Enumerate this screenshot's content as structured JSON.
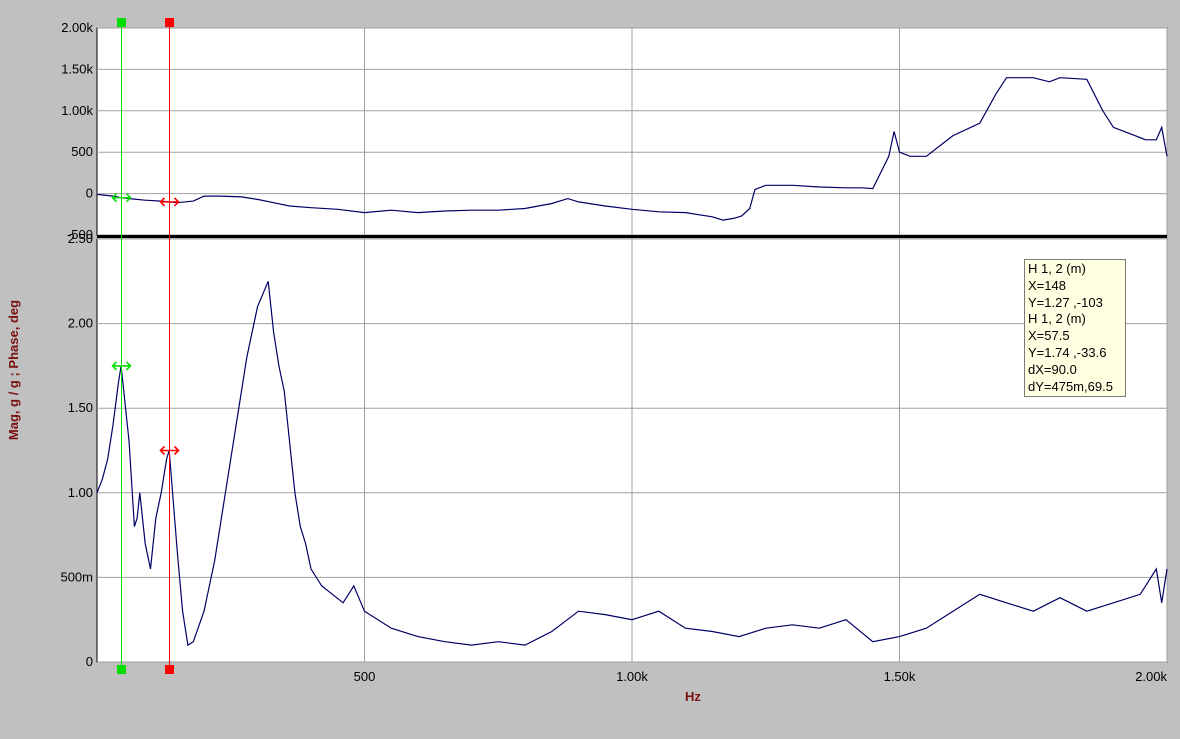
{
  "x_axis_label": "Hz",
  "y_axis_label": "Mag, g / g ; Phase, deg",
  "x_ticks": [
    {
      "value": 500,
      "label": "500"
    },
    {
      "value": 1000,
      "label": "1.00k"
    },
    {
      "value": 1500,
      "label": "1.50k"
    },
    {
      "value": 2000,
      "label": "2.00k"
    }
  ],
  "cursors": [
    {
      "name": "cursor-1",
      "x": 45,
      "color": "#00dd00"
    },
    {
      "name": "cursor-2",
      "x": 135,
      "color": "#ff0000"
    }
  ],
  "readout": {
    "lines": [
      "H 1, 2 (m)",
      "X=148",
      "Y=1.27 ,-103",
      "H 1, 2 (m)",
      "X=57.5",
      "Y=1.74 ,-33.6",
      "dX=90.0",
      "dY=475m,69.5"
    ]
  },
  "colors": {
    "trace": "#000066",
    "grid": "#a0a0a0",
    "background": "#c0c0c0",
    "plot": "#ffffff",
    "axis_label": "#7a1010"
  },
  "chart_data": [
    {
      "type": "line",
      "panel": "phase",
      "xlim": [
        0,
        2000
      ],
      "ylim": [
        -500,
        2000
      ],
      "y_ticks": [
        {
          "value": 2000,
          "label": "2.00k"
        },
        {
          "value": 1500,
          "label": "1.50k"
        },
        {
          "value": 1000,
          "label": "1.00k"
        },
        {
          "value": 500,
          "label": "500"
        },
        {
          "value": 0,
          "label": "0"
        },
        {
          "value": -500,
          "label": "-500"
        }
      ],
      "series": [
        {
          "x": [
            0,
            30,
            45,
            60,
            90,
            120,
            135,
            150,
            180,
            200,
            230,
            270,
            300,
            330,
            360,
            400,
            450,
            500,
            550,
            600,
            650,
            700,
            750,
            800,
            850,
            880,
            900,
            950,
            1000,
            1050,
            1100,
            1150,
            1170,
            1190,
            1205,
            1220,
            1230,
            1250,
            1300,
            1350,
            1400,
            1430,
            1450,
            1480,
            1490,
            1500,
            1520,
            1550,
            1580,
            1600,
            1650,
            1680,
            1700,
            1750,
            1780,
            1800,
            1850,
            1880,
            1900,
            1940,
            1960,
            1980,
            1990,
            2000
          ],
          "y": [
            -10,
            -30,
            -50,
            -60,
            -80,
            -90,
            -100,
            -110,
            -90,
            -30,
            -30,
            -40,
            -70,
            -110,
            -150,
            -170,
            -190,
            -230,
            -200,
            -230,
            -210,
            -200,
            -200,
            -180,
            -120,
            -60,
            -100,
            -150,
            -190,
            -220,
            -230,
            -280,
            -320,
            -300,
            -270,
            -180,
            50,
            100,
            100,
            80,
            70,
            70,
            60,
            450,
            750,
            500,
            450,
            450,
            600,
            700,
            850,
            1200,
            1400,
            1400,
            1350,
            1400,
            1380,
            1000,
            800,
            700,
            650,
            650,
            800,
            450
          ]
        }
      ]
    },
    {
      "type": "line",
      "panel": "magnitude",
      "xlim": [
        0,
        2000
      ],
      "ylim": [
        0,
        2.5
      ],
      "y_ticks": [
        {
          "value": 2.5,
          "label": "2.50"
        },
        {
          "value": 2.0,
          "label": "2.00"
        },
        {
          "value": 1.5,
          "label": "1.50"
        },
        {
          "value": 1.0,
          "label": "1.00"
        },
        {
          "value": 0.5,
          "label": "500m"
        },
        {
          "value": 0,
          "label": "0"
        }
      ],
      "series": [
        {
          "x": [
            0,
            10,
            20,
            30,
            40,
            45,
            50,
            60,
            70,
            75,
            80,
            90,
            100,
            110,
            120,
            130,
            135,
            140,
            150,
            160,
            170,
            180,
            200,
            220,
            240,
            260,
            280,
            300,
            320,
            330,
            340,
            350,
            360,
            370,
            380,
            390,
            400,
            420,
            440,
            460,
            480,
            500,
            550,
            600,
            650,
            700,
            750,
            800,
            850,
            900,
            950,
            1000,
            1050,
            1100,
            1150,
            1200,
            1250,
            1300,
            1350,
            1400,
            1450,
            1500,
            1550,
            1600,
            1650,
            1700,
            1750,
            1800,
            1850,
            1900,
            1950,
            1980,
            1990,
            2000
          ],
          "y": [
            1.0,
            1.08,
            1.2,
            1.4,
            1.65,
            1.75,
            1.6,
            1.3,
            0.8,
            0.85,
            1.0,
            0.7,
            0.55,
            0.85,
            1.0,
            1.2,
            1.25,
            1.05,
            0.65,
            0.3,
            0.1,
            0.12,
            0.3,
            0.6,
            1.0,
            1.4,
            1.8,
            2.1,
            2.25,
            1.95,
            1.75,
            1.6,
            1.3,
            1.0,
            0.8,
            0.7,
            0.55,
            0.45,
            0.4,
            0.35,
            0.45,
            0.3,
            0.2,
            0.15,
            0.12,
            0.1,
            0.12,
            0.1,
            0.18,
            0.3,
            0.28,
            0.25,
            0.3,
            0.2,
            0.18,
            0.15,
            0.2,
            0.22,
            0.2,
            0.25,
            0.12,
            0.15,
            0.2,
            0.3,
            0.4,
            0.35,
            0.3,
            0.38,
            0.3,
            0.35,
            0.4,
            0.55,
            0.35,
            0.55
          ]
        }
      ]
    }
  ]
}
